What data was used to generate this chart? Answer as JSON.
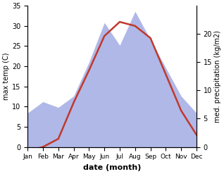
{
  "months": [
    "Jan",
    "Feb",
    "Mar",
    "Apr",
    "May",
    "Jun",
    "Jul",
    "Aug",
    "Sep",
    "Oct",
    "Nov",
    "Dec"
  ],
  "temperature": [
    -1.0,
    0.0,
    2.0,
    11.0,
    19.0,
    27.5,
    31.0,
    30.0,
    27.0,
    18.0,
    9.0,
    3.0
  ],
  "precipitation": [
    6.0,
    8.0,
    7.0,
    9.0,
    15.0,
    22.0,
    18.0,
    24.0,
    19.0,
    14.0,
    9.0,
    6.0
  ],
  "temp_color": "#c0392b",
  "precip_color": "#b0b8e8",
  "xlabel": "date (month)",
  "ylabel_left": "max temp (C)",
  "ylabel_right": "med. precipitation (kg/m2)",
  "ylim_left": [
    0,
    35
  ],
  "ylim_right": [
    0,
    25
  ],
  "yticks_left": [
    0,
    5,
    10,
    15,
    20,
    25,
    30,
    35
  ],
  "yticks_right": [
    0,
    5,
    10,
    15,
    20
  ],
  "temp_linewidth": 1.8,
  "bg_color": "#ffffff"
}
